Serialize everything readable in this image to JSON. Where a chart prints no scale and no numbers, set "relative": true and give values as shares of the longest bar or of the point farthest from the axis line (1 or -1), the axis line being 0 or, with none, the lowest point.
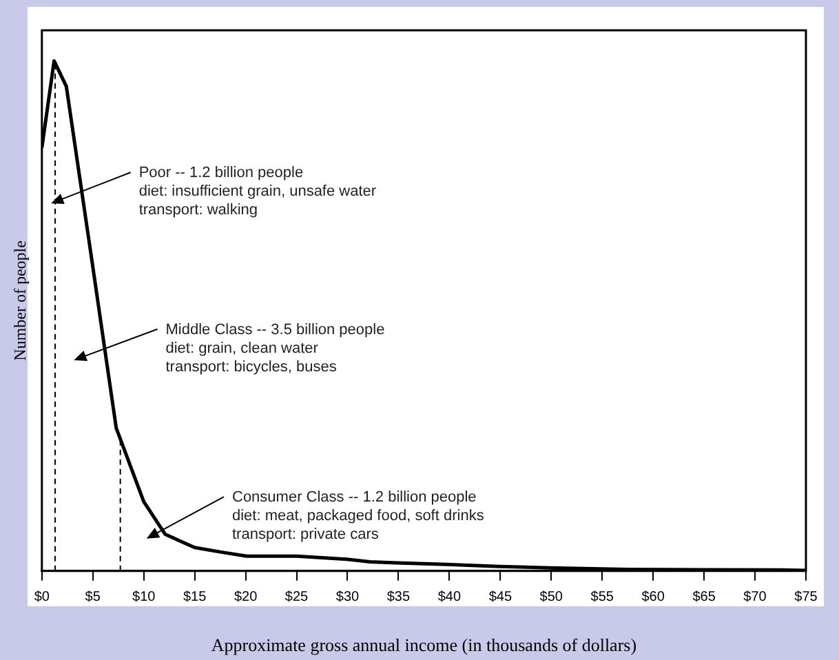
{
  "chart_data": {
    "type": "line",
    "relative": true,
    "xlabel": "Approximate gross annual income (in thousands of dollars)",
    "ylabel": "Number of people",
    "xlim": [
      0,
      75
    ],
    "xticks": [
      {
        "value": 0,
        "label": "$0"
      },
      {
        "value": 5,
        "label": "$5"
      },
      {
        "value": 10,
        "label": "$10"
      },
      {
        "value": 15,
        "label": "$15"
      },
      {
        "value": 20,
        "label": "$20"
      },
      {
        "value": 25,
        "label": "$25"
      },
      {
        "value": 30,
        "label": "$30"
      },
      {
        "value": 35,
        "label": "$35"
      },
      {
        "value": 40,
        "label": "$40"
      },
      {
        "value": 45,
        "label": "$45"
      },
      {
        "value": 50,
        "label": "$50"
      },
      {
        "value": 55,
        "label": "$55"
      },
      {
        "value": 60,
        "label": "$60"
      },
      {
        "value": 65,
        "label": "$65"
      },
      {
        "value": 70,
        "label": "$70"
      },
      {
        "value": 75,
        "label": "$75"
      }
    ],
    "x": [
      0,
      1.2,
      2.4,
      4.9,
      7.3,
      10.0,
      12.1,
      15.0,
      17.6,
      20.1,
      25.0,
      29.9,
      32.2,
      34.8,
      39.7,
      44.9,
      49.8,
      57.5,
      72.5,
      75
    ],
    "series": [
      {
        "color": "#000000",
        "values": [
          0.83,
          1.0,
          0.95,
          0.61,
          0.28,
          0.136,
          0.072,
          0.046,
          0.037,
          0.029,
          0.029,
          0.023,
          0.018,
          0.016,
          0.013,
          0.009,
          0.006,
          0.003,
          0.002,
          0.001
        ]
      }
    ],
    "ref_lines": [
      {
        "axis": "x",
        "value": 1.3,
        "color": "#000000",
        "line_style": "dashed"
      },
      {
        "axis": "x",
        "value": 7.7,
        "color": "#000000",
        "line_style": "dashed"
      }
    ],
    "annotations": [
      "Poor -- 1.2 billion people\ndiet: insufficient grain, unsafe water\ntransport: walking",
      "Middle Class -- 3.5 billion people\ndiet: grain, clean water\ntransport: bicycles, buses",
      "Consumer Class -- 1.2 billion people\ndiet: meat, packaged food, soft drinks\ntransport: private cars"
    ],
    "legend": false,
    "grid": false,
    "marker": "none",
    "line_style": "solid"
  }
}
